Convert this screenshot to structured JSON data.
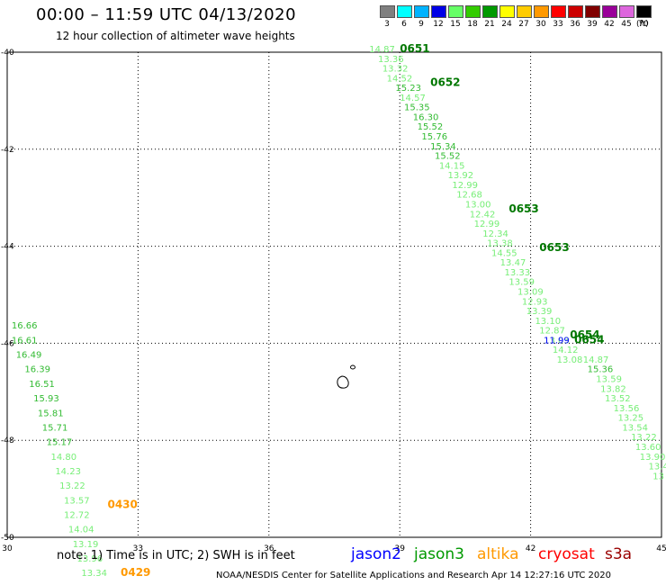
{
  "title": "00:00 – 11:59 UTC 04/13/2020",
  "subtitle": "12 hour collection of altimeter wave heights",
  "legend": {
    "unit": "(ft)",
    "items": [
      {
        "label": "3",
        "color": "#7f7f7f"
      },
      {
        "label": "6",
        "color": "#00ffff"
      },
      {
        "label": "9",
        "color": "#00b3ff"
      },
      {
        "label": "12",
        "color": "#0000e6"
      },
      {
        "label": "15",
        "color": "#66ff66"
      },
      {
        "label": "18",
        "color": "#33cc00"
      },
      {
        "label": "21",
        "color": "#009900"
      },
      {
        "label": "24",
        "color": "#ffff00"
      },
      {
        "label": "27",
        "color": "#ffcc00"
      },
      {
        "label": "30",
        "color": "#ff9900"
      },
      {
        "label": "33",
        "color": "#ff0000"
      },
      {
        "label": "36",
        "color": "#cc0000"
      },
      {
        "label": "39",
        "color": "#800000"
      },
      {
        "label": "42",
        "color": "#990099"
      },
      {
        "label": "45",
        "color": "#dd66dd"
      },
      {
        "label": "70",
        "color": "#000000"
      }
    ]
  },
  "map": {
    "lon_range": [
      30,
      45
    ],
    "lat_range": [
      -50,
      -40
    ],
    "lon_ticks": [
      "30",
      "33",
      "36",
      "39",
      "42",
      "45"
    ],
    "lat_ticks": [
      "-40",
      "-42",
      "-44",
      "-46",
      "-48",
      "-50"
    ],
    "colors": {
      "light": "#77ee77",
      "mid": "#33bb33",
      "dark": "#007700",
      "jason2": "#0000ff",
      "altika": "#ff9900"
    },
    "track_a": [
      {
        "lon": 38.3,
        "lat": -40.0,
        "v": "14.87",
        "c": "light"
      },
      {
        "lon": 38.5,
        "lat": -40.2,
        "v": "13.36",
        "c": "light"
      },
      {
        "lon": 38.6,
        "lat": -40.4,
        "v": "13.32",
        "c": "light"
      },
      {
        "lon": 38.7,
        "lat": -40.6,
        "v": "14.52",
        "c": "light"
      },
      {
        "lon": 38.9,
        "lat": -40.8,
        "v": "15.23",
        "c": "mid"
      },
      {
        "lon": 39.0,
        "lat": -41.0,
        "v": "14.57",
        "c": "light"
      },
      {
        "lon": 39.1,
        "lat": -41.2,
        "v": "15.35",
        "c": "mid"
      },
      {
        "lon": 39.3,
        "lat": -41.4,
        "v": "16.30",
        "c": "mid"
      },
      {
        "lon": 39.4,
        "lat": -41.6,
        "v": "15.52",
        "c": "mid"
      },
      {
        "lon": 39.5,
        "lat": -41.8,
        "v": "15.76",
        "c": "mid"
      },
      {
        "lon": 39.7,
        "lat": -42.0,
        "v": "15.34",
        "c": "mid"
      },
      {
        "lon": 39.8,
        "lat": -42.2,
        "v": "15.52",
        "c": "mid"
      },
      {
        "lon": 39.9,
        "lat": -42.4,
        "v": "14.15",
        "c": "light"
      },
      {
        "lon": 40.1,
        "lat": -42.6,
        "v": "13.92",
        "c": "light"
      },
      {
        "lon": 40.2,
        "lat": -42.8,
        "v": "12.99",
        "c": "light"
      },
      {
        "lon": 40.3,
        "lat": -43.0,
        "v": "12.68",
        "c": "light"
      },
      {
        "lon": 40.5,
        "lat": -43.2,
        "v": "13.00",
        "c": "light"
      },
      {
        "lon": 40.6,
        "lat": -43.4,
        "v": "12.42",
        "c": "light"
      },
      {
        "lon": 40.7,
        "lat": -43.6,
        "v": "12.99",
        "c": "light"
      },
      {
        "lon": 40.9,
        "lat": -43.8,
        "v": "12.34",
        "c": "light"
      },
      {
        "lon": 41.0,
        "lat": -44.0,
        "v": "13.38",
        "c": "light"
      },
      {
        "lon": 41.1,
        "lat": -44.2,
        "v": "14.55",
        "c": "light"
      },
      {
        "lon": 41.3,
        "lat": -44.4,
        "v": "13.47",
        "c": "light"
      },
      {
        "lon": 41.4,
        "lat": -44.6,
        "v": "13.33",
        "c": "light"
      },
      {
        "lon": 41.5,
        "lat": -44.8,
        "v": "13.59",
        "c": "light"
      },
      {
        "lon": 41.7,
        "lat": -45.0,
        "v": "13.09",
        "c": "light"
      },
      {
        "lon": 41.8,
        "lat": -45.2,
        "v": "12.93",
        "c": "light"
      },
      {
        "lon": 41.9,
        "lat": -45.4,
        "v": "13.39",
        "c": "light"
      },
      {
        "lon": 42.1,
        "lat": -45.6,
        "v": "13.10",
        "c": "light"
      },
      {
        "lon": 42.2,
        "lat": -45.8,
        "v": "12.87",
        "c": "light"
      },
      {
        "lon": 42.3,
        "lat": -46.0,
        "v": "13.03",
        "c": "light"
      },
      {
        "lon": 42.5,
        "lat": -46.2,
        "v": "14.12",
        "c": "light"
      },
      {
        "lon": 42.6,
        "lat": -46.4,
        "v": "13.08",
        "c": "light"
      }
    ],
    "track_b": [
      {
        "lon": 43.2,
        "lat": -46.4,
        "v": "14.87",
        "c": "light"
      },
      {
        "lon": 43.3,
        "lat": -46.6,
        "v": "15.36",
        "c": "mid"
      },
      {
        "lon": 43.5,
        "lat": -46.8,
        "v": "13.59",
        "c": "light"
      },
      {
        "lon": 43.6,
        "lat": -47.0,
        "v": "13.82",
        "c": "light"
      },
      {
        "lon": 43.7,
        "lat": -47.2,
        "v": "13.52",
        "c": "light"
      },
      {
        "lon": 43.9,
        "lat": -47.4,
        "v": "13.56",
        "c": "light"
      },
      {
        "lon": 44.0,
        "lat": -47.6,
        "v": "13.25",
        "c": "light"
      },
      {
        "lon": 44.1,
        "lat": -47.8,
        "v": "13.54",
        "c": "light"
      },
      {
        "lon": 44.3,
        "lat": -48.0,
        "v": "13.22",
        "c": "light"
      },
      {
        "lon": 44.4,
        "lat": -48.2,
        "v": "13.60",
        "c": "light"
      },
      {
        "lon": 44.5,
        "lat": -48.4,
        "v": "13.90",
        "c": "light"
      },
      {
        "lon": 44.7,
        "lat": -48.6,
        "v": "13.47",
        "c": "light"
      },
      {
        "lon": 44.8,
        "lat": -48.8,
        "v": "13",
        "c": "light"
      }
    ],
    "jason2_points": [
      {
        "lon": 42.3,
        "lat": -46.0,
        "v": "11.99",
        "c": "jason2"
      }
    ],
    "track_c": [
      {
        "lon": 30.1,
        "lat": -45.7,
        "v": "16.66",
        "c": "mid"
      },
      {
        "lon": 30.1,
        "lat": -46.0,
        "v": "16.61",
        "c": "mid"
      },
      {
        "lon": 30.2,
        "lat": -46.3,
        "v": "16.49",
        "c": "mid"
      },
      {
        "lon": 30.4,
        "lat": -46.6,
        "v": "16.39",
        "c": "mid"
      },
      {
        "lon": 30.5,
        "lat": -46.9,
        "v": "16.51",
        "c": "mid"
      },
      {
        "lon": 30.6,
        "lat": -47.2,
        "v": "15.93",
        "c": "mid"
      },
      {
        "lon": 30.7,
        "lat": -47.5,
        "v": "15.81",
        "c": "mid"
      },
      {
        "lon": 30.8,
        "lat": -47.8,
        "v": "15.71",
        "c": "mid"
      },
      {
        "lon": 30.9,
        "lat": -48.1,
        "v": "15.17",
        "c": "mid"
      },
      {
        "lon": 31.0,
        "lat": -48.4,
        "v": "14.80",
        "c": "light"
      },
      {
        "lon": 31.1,
        "lat": -48.7,
        "v": "14.23",
        "c": "light"
      },
      {
        "lon": 31.2,
        "lat": -49.0,
        "v": "13.22",
        "c": "light"
      },
      {
        "lon": 31.3,
        "lat": -49.3,
        "v": "13.57",
        "c": "light"
      },
      {
        "lon": 31.3,
        "lat": -49.6,
        "v": "12.72",
        "c": "light"
      },
      {
        "lon": 31.4,
        "lat": -49.9,
        "v": "14.04",
        "c": "light"
      },
      {
        "lon": 31.5,
        "lat": -50.2,
        "v": "13.19",
        "c": "light"
      },
      {
        "lon": 31.6,
        "lat": -50.5,
        "v": "13.96",
        "c": "light"
      },
      {
        "lon": 31.7,
        "lat": -50.8,
        "v": "13.34",
        "c": "light"
      }
    ],
    "time_labels": [
      {
        "lon": 39.0,
        "lat": -40.0,
        "v": "0651",
        "c": "dark"
      },
      {
        "lon": 39.7,
        "lat": -40.7,
        "v": "0652",
        "c": "dark"
      },
      {
        "lon": 41.5,
        "lat": -43.3,
        "v": "0653",
        "c": "dark"
      },
      {
        "lon": 42.2,
        "lat": -44.1,
        "v": "0653",
        "c": "dark"
      },
      {
        "lon": 42.9,
        "lat": -45.9,
        "v": "0654",
        "c": "dark"
      },
      {
        "lon": 43.0,
        "lat": -46.0,
        "v": "0654",
        "c": "dark"
      },
      {
        "lon": 32.3,
        "lat": -49.4,
        "v": "0430",
        "c": "altika"
      },
      {
        "lon": 32.6,
        "lat": -50.8,
        "v": "0429",
        "c": "altika"
      }
    ]
  },
  "note": "note:  1) Time is in UTC;  2) SWH is in feet",
  "missions": [
    {
      "name": "jason2",
      "color": "#0000ff"
    },
    {
      "name": "jason3",
      "color": "#009900"
    },
    {
      "name": "altika",
      "color": "#ff9900"
    },
    {
      "name": "cryosat",
      "color": "#ff0000"
    },
    {
      "name": "s3a",
      "color": "#990000"
    }
  ],
  "footer": "NOAA/NESDIS Center for Satellite Applications and Research    Apr 14 12:27:16 UTC 2020"
}
